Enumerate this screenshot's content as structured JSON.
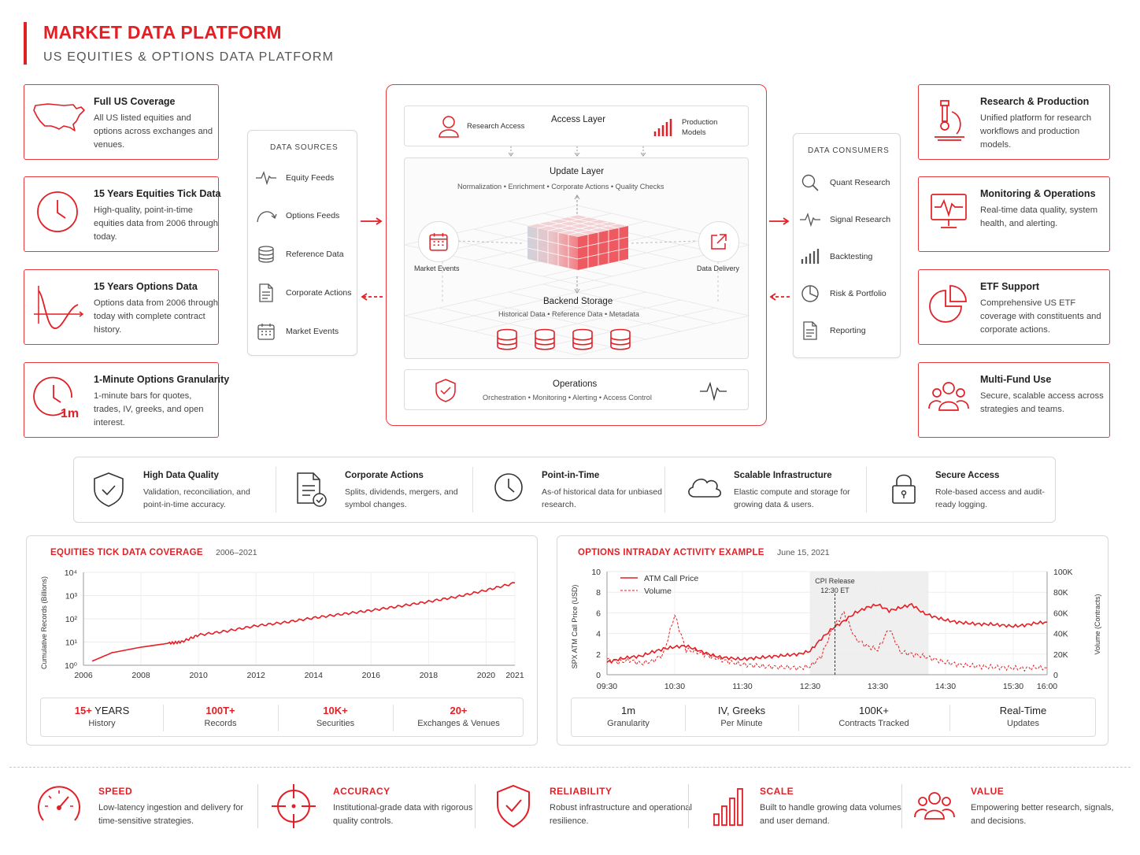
{
  "header": {
    "title": "MARKET DATA PLATFORM",
    "subtitle": "US EQUITIES & OPTIONS DATA PLATFORM"
  },
  "left_cards": [
    {
      "icon": "us-map-icon",
      "title": "Full US Coverage",
      "desc": "All US listed equities and options across exchanges and venues."
    },
    {
      "icon": "clock-icon",
      "title": "15 Years Equities Tick Data",
      "desc": "High-quality, point-in-time equities data from 2006 through today."
    },
    {
      "icon": "options-curve-icon",
      "title": "15 Years Options Data",
      "desc": "Options data from 2006 through today with complete contract history."
    },
    {
      "icon": "clock-1m-icon",
      "icon_text": "1m",
      "title": "1-Minute Options Granularity",
      "desc": "1-minute bars for quotes, trades, IV, greeks, and open interest."
    }
  ],
  "right_cards": [
    {
      "icon": "microscope-icon",
      "title": "Research & Production",
      "desc": "Unified platform for research workflows and production models."
    },
    {
      "icon": "monitor-pulse-icon",
      "title": "Monitoring & Operations",
      "desc": "Real-time data quality, system health, and alerting."
    },
    {
      "icon": "pie-chart-icon",
      "title": "ETF Support",
      "desc": "Comprehensive US ETF coverage with constituents and corporate actions."
    },
    {
      "icon": "users-icon",
      "title": "Multi-Fund Use",
      "desc": "Secure, scalable access across strategies and teams."
    }
  ],
  "data_sources": {
    "heading": "DATA SOURCES",
    "items": [
      {
        "icon": "pulse-icon",
        "label": "Equity Feeds"
      },
      {
        "icon": "curve-arrow-icon",
        "label": "Options Feeds"
      },
      {
        "icon": "database-icon",
        "label": "Reference Data"
      },
      {
        "icon": "document-icon",
        "label": "Corporate Actions"
      },
      {
        "icon": "calendar-icon",
        "label": "Market Events"
      }
    ]
  },
  "data_consumers": {
    "heading": "DATA CONSUMERS",
    "items": [
      {
        "icon": "search-icon",
        "label": "Quant Research"
      },
      {
        "icon": "pulse-icon",
        "label": "Signal Research"
      },
      {
        "icon": "bar-chart-icon",
        "label": "Backtesting"
      },
      {
        "icon": "pie-chart-icon",
        "label": "Risk & Portfolio"
      },
      {
        "icon": "document-icon",
        "label": "Reporting"
      }
    ]
  },
  "center": {
    "access_layer": {
      "title": "Access Layer",
      "left": "Research Access",
      "right": "Production Models"
    },
    "update_layer": {
      "title": "Update Layer",
      "sub": "Normalization  •  Enrichment  •  Corporate Actions  •  Quality Checks"
    },
    "market_events": "Market Events",
    "data_delivery": "Data Delivery",
    "backend": {
      "title": "Backend Storage",
      "sub": "Historical Data  •  Reference Data  •  Metadata"
    },
    "operations": {
      "title": "Operations",
      "sub": "Orchestration  •  Monitoring  •  Alerting  •  Access Control"
    }
  },
  "strip": [
    {
      "icon": "shield-check-icon",
      "title": "High Data Quality",
      "desc": "Validation, reconciliation, and point-in-time accuracy."
    },
    {
      "icon": "document-check-icon",
      "title": "Corporate Actions",
      "desc": "Splits, dividends, mergers, and symbol changes."
    },
    {
      "icon": "clock-icon",
      "title": "Point-in-Time",
      "desc": "As-of historical data for unbiased research."
    },
    {
      "icon": "cloud-icon",
      "title": "Scalable Infrastructure",
      "desc": "Elastic compute and storage for growing data & users."
    },
    {
      "icon": "lock-icon",
      "title": "Secure Access",
      "desc": "Role-based access and audit-ready logging."
    }
  ],
  "equities_panel": {
    "title": "EQUITIES TICK DATA COVERAGE",
    "range": "2006–2021",
    "stats": [
      {
        "value": "15+",
        "suffix": " YEARS",
        "label": "History"
      },
      {
        "value": "100T+",
        "suffix": "",
        "label": "Records"
      },
      {
        "value": "10K+",
        "suffix": "",
        "label": "Securities"
      },
      {
        "value": "20+",
        "suffix": "",
        "label": "Exchanges & Venues"
      }
    ]
  },
  "options_panel": {
    "title": "OPTIONS INTRADAY ACTIVITY EXAMPLE",
    "date": "June 15, 2021",
    "stats": [
      {
        "value": "1m",
        "label": "Granularity"
      },
      {
        "value": "IV, Greeks",
        "label": "Per Minute"
      },
      {
        "value": "100K+",
        "label": "Contracts Tracked"
      },
      {
        "value": "Real-Time",
        "label": "Updates"
      }
    ]
  },
  "chart_data": [
    {
      "type": "line",
      "ylabel": "Cumulative Records (Billions)",
      "yscale": "log",
      "ylim": [
        1,
        10000
      ],
      "xlim": [
        2006,
        2021
      ],
      "yticks": [
        "10⁰",
        "10¹",
        "10²",
        "10³",
        "10⁴"
      ],
      "xticks": [
        "2006",
        "2008",
        "2010",
        "2012",
        "2014",
        "2016",
        "2018",
        "2020",
        "2021"
      ],
      "grid": true,
      "color": "#e31e24",
      "x": [
        2006.3,
        2007,
        2008,
        2009,
        2009.4,
        2010,
        2011,
        2012,
        2013,
        2014,
        2015,
        2016,
        2017,
        2018,
        2019,
        2020,
        2021
      ],
      "y": [
        1.5,
        3.5,
        6,
        9,
        10,
        20,
        30,
        50,
        70,
        110,
        160,
        230,
        350,
        550,
        900,
        1700,
        3500
      ]
    },
    {
      "type": "line",
      "ylabel": "SPX ATM Call Price (USD)",
      "y2label": "Volume (Contracts)",
      "ylim": [
        0,
        10
      ],
      "y2lim": [
        0,
        100000
      ],
      "yticks": [
        "0",
        "2",
        "4",
        "6",
        "8",
        "10"
      ],
      "y2ticks": [
        "0",
        "20K",
        "40K",
        "60K",
        "80K",
        "100K"
      ],
      "xticks": [
        "09:30",
        "10:30",
        "11:30",
        "12:30",
        "13:30",
        "14:30",
        "15:30",
        "16:00"
      ],
      "legend_position": "top-left",
      "annotation": {
        "text": "CPI Release",
        "time": "12:30 ET"
      },
      "series": [
        {
          "name": "ATM Call Price",
          "style": "solid",
          "color": "#e31e24",
          "x": [
            "09:30",
            "09:40",
            "09:50",
            "10:00",
            "10:10",
            "10:20",
            "10:30",
            "10:40",
            "10:50",
            "11:00",
            "11:10",
            "11:20",
            "11:30",
            "11:40",
            "11:50",
            "12:00",
            "12:10",
            "12:20",
            "12:30",
            "12:40",
            "12:50",
            "13:00",
            "13:10",
            "13:20",
            "13:30",
            "13:40",
            "13:50",
            "14:00",
            "14:10",
            "14:20",
            "14:30",
            "14:40",
            "14:50",
            "15:00",
            "15:10",
            "15:20",
            "15:30",
            "15:40",
            "15:50",
            "16:00"
          ],
          "values": [
            1.2,
            1.5,
            1.7,
            1.8,
            2.2,
            2.5,
            2.7,
            2.8,
            2.4,
            2.0,
            1.7,
            1.6,
            1.5,
            1.6,
            1.7,
            1.8,
            1.9,
            2.0,
            2.3,
            3.5,
            4.5,
            5.2,
            6.0,
            6.5,
            6.8,
            6.2,
            6.5,
            6.8,
            6.0,
            5.6,
            5.3,
            5.1,
            5.0,
            4.9,
            4.9,
            4.8,
            4.7,
            4.8,
            5.0,
            5.1
          ]
        },
        {
          "name": "Volume",
          "style": "dashed",
          "color": "#e31e24",
          "x": [
            "09:30",
            "09:40",
            "09:50",
            "10:00",
            "10:10",
            "10:20",
            "10:30",
            "10:40",
            "10:50",
            "11:00",
            "11:10",
            "11:20",
            "11:30",
            "11:40",
            "11:50",
            "12:00",
            "12:10",
            "12:20",
            "12:30",
            "12:40",
            "12:50",
            "13:00",
            "13:10",
            "13:20",
            "13:30",
            "13:40",
            "13:50",
            "14:00",
            "14:10",
            "14:20",
            "14:30",
            "14:40",
            "14:50",
            "15:00",
            "15:10",
            "15:20",
            "15:30",
            "15:40",
            "15:50",
            "16:00"
          ],
          "values": [
            15000,
            12000,
            14000,
            11000,
            13000,
            20000,
            58000,
            24000,
            22000,
            18000,
            15000,
            12000,
            10000,
            9000,
            8000,
            7500,
            7000,
            6500,
            8000,
            18000,
            45000,
            60000,
            35000,
            28000,
            24000,
            45000,
            22000,
            20000,
            18000,
            15000,
            12000,
            10000,
            9000,
            8000,
            7500,
            7000,
            6500,
            6000,
            7000,
            6500
          ]
        }
      ]
    }
  ],
  "values": [
    {
      "icon": "speedometer-icon",
      "title": "SPEED",
      "desc": "Low-latency ingestion and delivery for time-sensitive strategies."
    },
    {
      "icon": "crosshair-icon",
      "title": "ACCURACY",
      "desc": "Institutional-grade data with rigorous quality controls."
    },
    {
      "icon": "shield-check-icon",
      "title": "RELIABILITY",
      "desc": "Robust infrastructure and operational resilience."
    },
    {
      "icon": "bar-chart-icon",
      "title": "SCALE",
      "desc": "Built to handle growing data volumes and user demand."
    },
    {
      "icon": "users-icon",
      "title": "VALUE",
      "desc": "Empowering better research, signals, and decisions."
    }
  ],
  "colors": {
    "accent": "#e31e24",
    "border": "#d8d8d8",
    "text": "#333333"
  }
}
